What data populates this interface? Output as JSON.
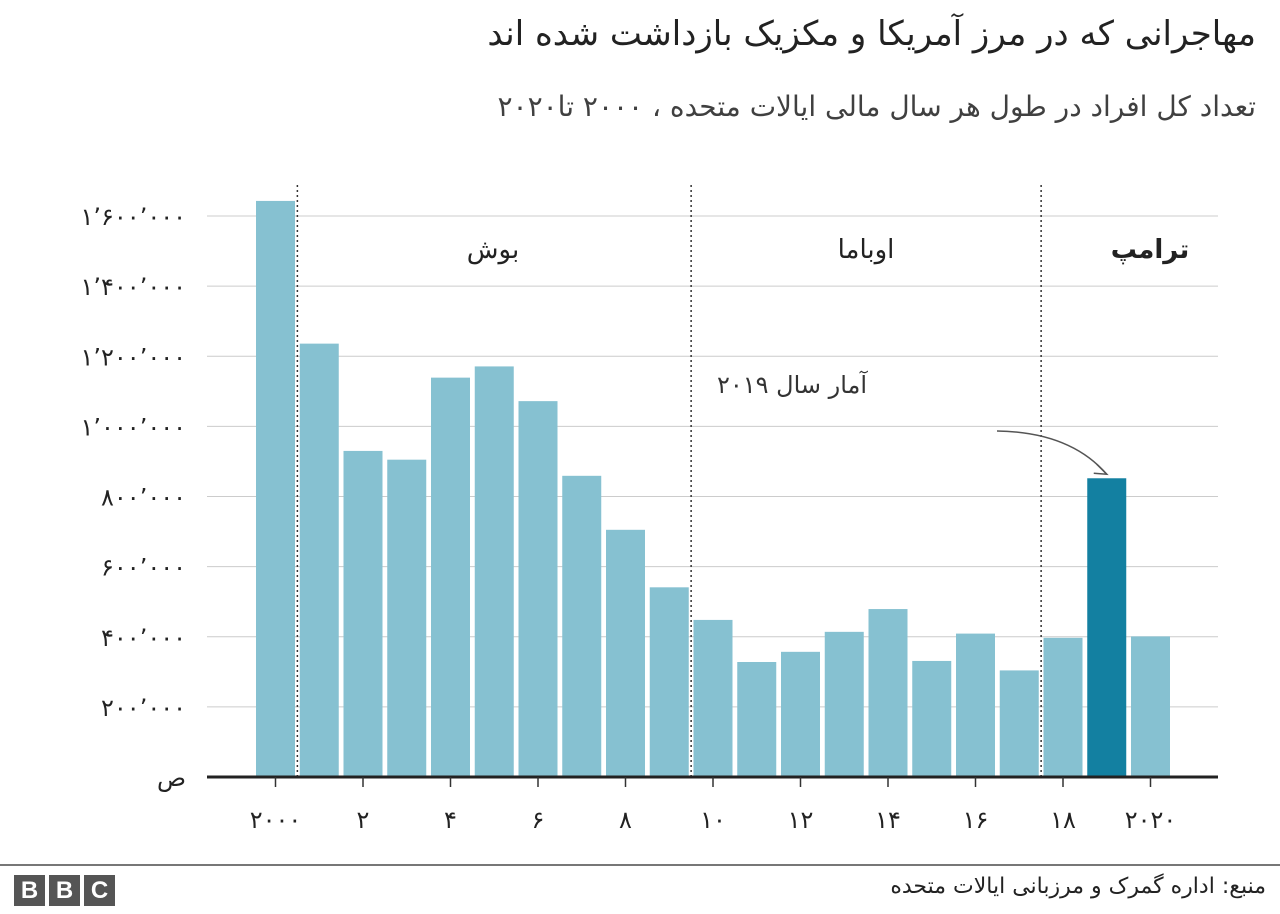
{
  "chart_data": {
    "type": "bar",
    "title": "مهاجرانی که در مرز آمریکا و مکزیک بازداشت شده اند",
    "subtitle": "تعداد کل افراد در طول هر سال مالی ایالات متحده ، ۲۰۰۰ تا۲۰۲۰",
    "categories": [
      "2000",
      "2001",
      "2002",
      "2003",
      "2004",
      "2005",
      "2006",
      "2007",
      "2008",
      "2009",
      "2010",
      "2011",
      "2012",
      "2013",
      "2014",
      "2015",
      "2016",
      "2017",
      "2018",
      "2019",
      "2020"
    ],
    "values": [
      1643000,
      1236000,
      930000,
      905000,
      1139000,
      1171000,
      1072000,
      859000,
      705000,
      541000,
      448000,
      328000,
      357000,
      414000,
      479000,
      331000,
      409000,
      304000,
      397000,
      852000,
      401000
    ],
    "highlight_category": "2019",
    "ylim": [
      0,
      1600000
    ],
    "y_ticks": [
      0,
      200000,
      400000,
      600000,
      800000,
      1000000,
      1200000,
      1400000,
      1600000
    ],
    "y_tick_labels": [
      "ص",
      "۲۰۰٬۰۰۰",
      "۴۰۰٬۰۰۰",
      "۶۰۰٬۰۰۰",
      "۸۰۰٬۰۰۰",
      "۱٬۰۰۰٬۰۰۰",
      "۱٬۲۰۰٬۰۰۰",
      "۱٬۴۰۰٬۰۰۰",
      "۱٬۶۰۰٬۰۰۰"
    ],
    "x_tick_labels": [
      {
        "category": "2000",
        "label": "۲۰۰۰"
      },
      {
        "category": "2002",
        "label": "۲"
      },
      {
        "category": "2004",
        "label": "۴"
      },
      {
        "category": "2006",
        "label": "۶"
      },
      {
        "category": "2008",
        "label": "۸"
      },
      {
        "category": "2010",
        "label": "۱۰"
      },
      {
        "category": "2012",
        "label": "۱۲"
      },
      {
        "category": "2014",
        "label": "۱۴"
      },
      {
        "category": "2016",
        "label": "۱۶"
      },
      {
        "category": "2018",
        "label": "۱۸"
      },
      {
        "category": "2020",
        "label": "۲۰۲۰"
      }
    ],
    "periods": [
      {
        "label": "بوش",
        "from": "2001",
        "to": "2008",
        "bold": false
      },
      {
        "label": "اوباما",
        "from": "2009",
        "to": "2016",
        "bold": false
      },
      {
        "label": "ترامپ",
        "from": "2017",
        "to": "2020",
        "bold": true
      }
    ],
    "annotation": {
      "text": "آمار سال ۲۰۱۹",
      "target": "2019"
    },
    "grid": true,
    "colors": {
      "bar": "#86c1d1",
      "highlight": "#1380a1",
      "grid": "#cccccc",
      "axis": "#222222"
    }
  },
  "footer": {
    "source": "منبع: اداره گمرک و مرزبانی ایالات متحده",
    "logo": "BBC"
  }
}
